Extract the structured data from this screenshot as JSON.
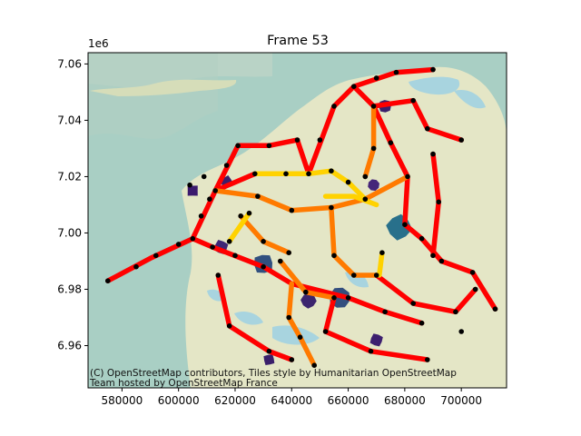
{
  "title": "Frame 53",
  "y_offset_label": "1e6",
  "attribution_line1": "(C) OpenStreetMap contributors, Tiles style by Humanitarian OpenStreetMap",
  "attribution_line2": "Team hosted by OpenStreetMap France",
  "colors": {
    "sea": "#a9cfc4",
    "tidal_flat": "#bfd3c1",
    "land": "#e4e6c6",
    "water": "#a8d4df",
    "road_high": "#ff0000",
    "road_mid": "#ff7a00",
    "road_low": "#ffd200",
    "marker": "#000000"
  },
  "chart_data": {
    "type": "scatter",
    "xlim": [
      568000,
      716000
    ],
    "ylim": [
      6945000,
      7064000
    ],
    "xticks": [
      580000,
      600000,
      620000,
      640000,
      660000,
      680000,
      700000
    ],
    "xtick_labels": [
      "580000",
      "600000",
      "620000",
      "640000",
      "660000",
      "680000",
      "700000"
    ],
    "yticks": [
      6960000,
      6980000,
      7000000,
      7020000,
      7040000,
      7060000
    ],
    "ytick_labels": [
      "6.96",
      "6.98",
      "7.00",
      "7.02",
      "7.04",
      "7.06"
    ],
    "roads": [
      {
        "level": "high",
        "points": [
          [
            575000,
            6983000
          ],
          [
            590000,
            6991000
          ],
          [
            605000,
            6998000
          ],
          [
            613000,
            7015000
          ],
          [
            627000,
            7021000
          ]
        ]
      },
      {
        "level": "high",
        "points": [
          [
            605000,
            6998000
          ],
          [
            612000,
            6995000
          ],
          [
            630000,
            6988000
          ],
          [
            640000,
            6982000
          ],
          [
            660000,
            6977000
          ],
          [
            673000,
            6972000
          ],
          [
            686000,
            6968000
          ]
        ]
      },
      {
        "level": "high",
        "points": [
          [
            613000,
            7015000
          ],
          [
            621000,
            7031000
          ],
          [
            632000,
            7031000
          ],
          [
            642000,
            7033000
          ],
          [
            646000,
            7021000
          ]
        ]
      },
      {
        "level": "high",
        "points": [
          [
            646000,
            7021000
          ],
          [
            655000,
            7045000
          ],
          [
            662000,
            7052000
          ],
          [
            677000,
            7057000
          ],
          [
            690000,
            7058000
          ]
        ]
      },
      {
        "level": "high",
        "points": [
          [
            662000,
            7052000
          ],
          [
            669000,
            7045000
          ],
          [
            683000,
            7047000
          ],
          [
            688000,
            7037000
          ],
          [
            700000,
            7033000
          ]
        ]
      },
      {
        "level": "high",
        "points": [
          [
            669000,
            7045000
          ],
          [
            675000,
            7032000
          ],
          [
            681000,
            7020000
          ],
          [
            680000,
            7003000
          ],
          [
            686000,
            6998000
          ],
          [
            693000,
            6990000
          ],
          [
            704000,
            6986000
          ],
          [
            712000,
            6973000
          ]
        ]
      },
      {
        "level": "high",
        "points": [
          [
            690000,
            7028000
          ],
          [
            692000,
            7011000
          ],
          [
            690000,
            6992000
          ]
        ]
      },
      {
        "level": "high",
        "points": [
          [
            670000,
            6985000
          ],
          [
            683000,
            6975000
          ],
          [
            698000,
            6972000
          ],
          [
            705000,
            6980000
          ]
        ]
      },
      {
        "level": "high",
        "points": [
          [
            655000,
            6977000
          ],
          [
            652000,
            6965000
          ],
          [
            668000,
            6958000
          ],
          [
            688000,
            6955000
          ]
        ]
      },
      {
        "level": "high",
        "points": [
          [
            614000,
            6985000
          ],
          [
            618000,
            6967000
          ],
          [
            632000,
            6958000
          ],
          [
            640000,
            6955000
          ]
        ]
      },
      {
        "level": "mid",
        "points": [
          [
            613000,
            7015000
          ],
          [
            628000,
            7013000
          ],
          [
            640000,
            7008000
          ],
          [
            654000,
            7009000
          ],
          [
            666000,
            7012000
          ],
          [
            681000,
            7020000
          ]
        ]
      },
      {
        "level": "mid",
        "points": [
          [
            622000,
            7006000
          ],
          [
            630000,
            6997000
          ],
          [
            639000,
            6993000
          ]
        ]
      },
      {
        "level": "mid",
        "points": [
          [
            654000,
            7009000
          ],
          [
            655000,
            6992000
          ],
          [
            662000,
            6985000
          ],
          [
            670000,
            6985000
          ]
        ]
      },
      {
        "level": "mid",
        "points": [
          [
            636000,
            6990000
          ],
          [
            645000,
            6979000
          ],
          [
            655000,
            6977000
          ]
        ]
      },
      {
        "level": "mid",
        "points": [
          [
            640000,
            6982000
          ],
          [
            639000,
            6970000
          ],
          [
            643000,
            6963000
          ],
          [
            648000,
            6953000
          ]
        ]
      },
      {
        "level": "mid",
        "points": [
          [
            669000,
            7045000
          ],
          [
            669000,
            7030000
          ],
          [
            666000,
            7020000
          ]
        ]
      },
      {
        "level": "low",
        "points": [
          [
            627000,
            7021000
          ],
          [
            638000,
            7021000
          ],
          [
            646000,
            7021000
          ],
          [
            654000,
            7022000
          ]
        ]
      },
      {
        "level": "low",
        "points": [
          [
            654000,
            7022000
          ],
          [
            660000,
            7018000
          ],
          [
            666000,
            7012000
          ]
        ]
      },
      {
        "level": "low",
        "points": [
          [
            652000,
            7013000
          ],
          [
            662000,
            7013000
          ],
          [
            670000,
            7010000
          ]
        ]
      },
      {
        "level": "low",
        "points": [
          [
            672000,
            6993000
          ],
          [
            671000,
            6985000
          ]
        ]
      },
      {
        "level": "low",
        "points": [
          [
            625000,
            7007000
          ],
          [
            618000,
            6997000
          ]
        ]
      }
    ],
    "markers": [
      [
        575000,
        6983000
      ],
      [
        585000,
        6988000
      ],
      [
        592000,
        6992000
      ],
      [
        600000,
        6996000
      ],
      [
        605000,
        6998000
      ],
      [
        608000,
        7006000
      ],
      [
        611000,
        7012000
      ],
      [
        613000,
        7015000
      ],
      [
        617000,
        7024000
      ],
      [
        621000,
        7031000
      ],
      [
        632000,
        7031000
      ],
      [
        642000,
        7033000
      ],
      [
        646000,
        7021000
      ],
      [
        650000,
        7033000
      ],
      [
        655000,
        7045000
      ],
      [
        662000,
        7052000
      ],
      [
        670000,
        7055000
      ],
      [
        677000,
        7057000
      ],
      [
        690000,
        7058000
      ],
      [
        669000,
        7045000
      ],
      [
        683000,
        7047000
      ],
      [
        688000,
        7037000
      ],
      [
        700000,
        7033000
      ],
      [
        675000,
        7032000
      ],
      [
        681000,
        7020000
      ],
      [
        680000,
        7003000
      ],
      [
        686000,
        6998000
      ],
      [
        693000,
        6990000
      ],
      [
        704000,
        6986000
      ],
      [
        712000,
        6973000
      ],
      [
        690000,
        7028000
      ],
      [
        692000,
        7011000
      ],
      [
        690000,
        6992000
      ],
      [
        670000,
        6985000
      ],
      [
        683000,
        6975000
      ],
      [
        698000,
        6972000
      ],
      [
        705000,
        6980000
      ],
      [
        655000,
        6977000
      ],
      [
        652000,
        6965000
      ],
      [
        668000,
        6958000
      ],
      [
        688000,
        6955000
      ],
      [
        614000,
        6985000
      ],
      [
        618000,
        6967000
      ],
      [
        632000,
        6958000
      ],
      [
        640000,
        6955000
      ],
      [
        628000,
        7013000
      ],
      [
        640000,
        7008000
      ],
      [
        654000,
        7009000
      ],
      [
        666000,
        7012000
      ],
      [
        622000,
        7006000
      ],
      [
        630000,
        6997000
      ],
      [
        639000,
        6993000
      ],
      [
        655000,
        6992000
      ],
      [
        662000,
        6985000
      ],
      [
        636000,
        6990000
      ],
      [
        645000,
        6979000
      ],
      [
        639000,
        6970000
      ],
      [
        643000,
        6963000
      ],
      [
        648000,
        6953000
      ],
      [
        669000,
        7030000
      ],
      [
        666000,
        7020000
      ],
      [
        627000,
        7021000
      ],
      [
        638000,
        7021000
      ],
      [
        654000,
        7022000
      ],
      [
        660000,
        7018000
      ],
      [
        612000,
        6995000
      ],
      [
        620000,
        6992000
      ],
      [
        630000,
        6988000
      ],
      [
        660000,
        6977000
      ],
      [
        673000,
        6972000
      ],
      [
        686000,
        6968000
      ],
      [
        700000,
        6965000
      ],
      [
        625000,
        7007000
      ],
      [
        618000,
        6997000
      ],
      [
        672000,
        6993000
      ],
      [
        604000,
        7017000
      ],
      [
        609000,
        7020000
      ]
    ],
    "zones": [
      {
        "x": 605000,
        "y": 7015000,
        "r": 2200,
        "color": "#3b1a6e"
      },
      {
        "x": 617000,
        "y": 7018000,
        "r": 2200,
        "color": "#3a1f6b"
      },
      {
        "x": 615000,
        "y": 6995000,
        "r": 2400,
        "color": "#3e2676"
      },
      {
        "x": 630000,
        "y": 6989000,
        "r": 3400,
        "color": "#31507f"
      },
      {
        "x": 646000,
        "y": 6976000,
        "r": 2600,
        "color": "#3c256e"
      },
      {
        "x": 657000,
        "y": 6977000,
        "r": 3600,
        "color": "#334e7e"
      },
      {
        "x": 669000,
        "y": 7017000,
        "r": 2000,
        "color": "#45257a"
      },
      {
        "x": 673000,
        "y": 7045000,
        "r": 2200,
        "color": "#3a1f6b"
      },
      {
        "x": 678000,
        "y": 7002000,
        "r": 4200,
        "color": "#28708b"
      },
      {
        "x": 670000,
        "y": 6962000,
        "r": 2200,
        "color": "#3d1f6f"
      },
      {
        "x": 632000,
        "y": 6955000,
        "r": 2000,
        "color": "#3a1f6b"
      }
    ]
  }
}
